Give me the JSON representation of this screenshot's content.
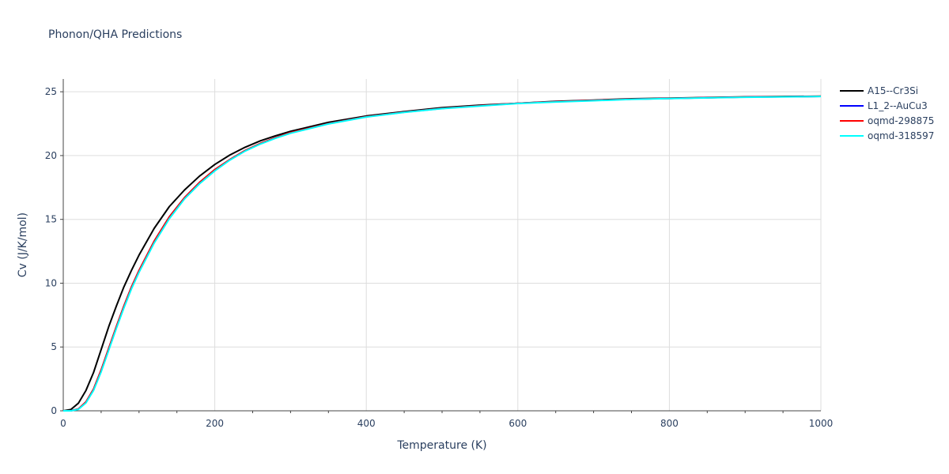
{
  "chart_data": {
    "type": "line",
    "title": "Phonon/QHA Predictions",
    "xlabel": "Temperature (K)",
    "ylabel": "Cv (J/K/mol)",
    "xlim": [
      0,
      1000
    ],
    "ylim": [
      0,
      26
    ],
    "x_ticks": [
      0,
      200,
      400,
      600,
      800,
      1000
    ],
    "y_ticks": [
      0,
      5,
      10,
      15,
      20,
      25
    ],
    "grid": true,
    "legend_position": "top-right",
    "series": [
      {
        "name": "A15--Cr3Si",
        "color": "#000000",
        "x": [
          0,
          10,
          20,
          30,
          40,
          50,
          60,
          70,
          80,
          90,
          100,
          120,
          140,
          160,
          180,
          200,
          220,
          240,
          260,
          280,
          300,
          350,
          400,
          450,
          500,
          550,
          600,
          650,
          700,
          750,
          800,
          850,
          900,
          950,
          1000
        ],
        "y": [
          0,
          0.1,
          0.6,
          1.6,
          3.0,
          4.8,
          6.6,
          8.2,
          9.7,
          11.0,
          12.2,
          14.3,
          16.0,
          17.3,
          18.4,
          19.3,
          20.05,
          20.65,
          21.15,
          21.55,
          21.9,
          22.6,
          23.1,
          23.45,
          23.75,
          23.95,
          24.1,
          24.25,
          24.35,
          24.45,
          24.5,
          24.55,
          24.6,
          24.63,
          24.65
        ]
      },
      {
        "name": "L1_2--AuCu3",
        "color": "#0000ff",
        "x": [
          0,
          10,
          20,
          30,
          40,
          50,
          60,
          70,
          80,
          90,
          100,
          120,
          140,
          160,
          180,
          200,
          220,
          240,
          260,
          280,
          300,
          350,
          400,
          450,
          500,
          550,
          600,
          650,
          700,
          750,
          800,
          850,
          900,
          950,
          1000
        ],
        "y": [
          0,
          0,
          0.15,
          0.7,
          1.7,
          3.2,
          4.9,
          6.6,
          8.2,
          9.7,
          11.0,
          13.3,
          15.2,
          16.7,
          17.9,
          18.9,
          19.7,
          20.4,
          20.95,
          21.4,
          21.8,
          22.5,
          23.05,
          23.4,
          23.7,
          23.9,
          24.1,
          24.22,
          24.32,
          24.42,
          24.48,
          24.53,
          24.58,
          24.61,
          24.64
        ]
      },
      {
        "name": "oqmd-298875",
        "color": "#ff0000",
        "x": [
          0,
          10,
          20,
          30,
          40,
          50,
          60,
          70,
          80,
          90,
          100,
          120,
          140,
          160,
          180,
          200,
          220,
          240,
          260,
          280,
          300,
          350,
          400,
          450,
          500,
          550,
          600,
          650,
          700,
          750,
          800,
          850,
          900,
          950,
          1000
        ],
        "y": [
          0,
          0,
          0.15,
          0.7,
          1.7,
          3.2,
          4.9,
          6.6,
          8.2,
          9.7,
          11.0,
          13.3,
          15.2,
          16.7,
          17.9,
          18.9,
          19.7,
          20.4,
          20.95,
          21.4,
          21.8,
          22.5,
          23.05,
          23.4,
          23.7,
          23.9,
          24.1,
          24.22,
          24.32,
          24.42,
          24.48,
          24.53,
          24.58,
          24.61,
          24.64
        ]
      },
      {
        "name": "oqmd-318597",
        "color": "#00ffff",
        "x": [
          0,
          10,
          20,
          30,
          40,
          50,
          60,
          70,
          80,
          90,
          100,
          120,
          140,
          160,
          180,
          200,
          220,
          240,
          260,
          280,
          300,
          350,
          400,
          450,
          500,
          550,
          600,
          650,
          700,
          750,
          800,
          850,
          900,
          950,
          1000
        ],
        "y": [
          0,
          0,
          0.12,
          0.62,
          1.6,
          3.05,
          4.75,
          6.45,
          8.05,
          9.55,
          10.85,
          13.15,
          15.05,
          16.6,
          17.8,
          18.8,
          19.65,
          20.35,
          20.9,
          21.35,
          21.75,
          22.48,
          23.02,
          23.38,
          23.68,
          23.88,
          24.08,
          24.2,
          24.3,
          24.4,
          24.47,
          24.52,
          24.57,
          24.6,
          24.63
        ]
      }
    ]
  }
}
